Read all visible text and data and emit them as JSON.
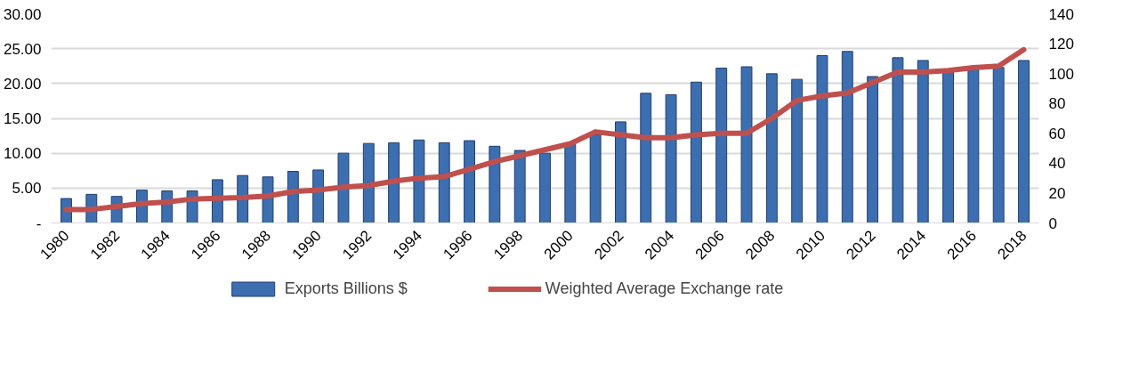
{
  "chart_data": {
    "type": "bar",
    "x": [
      1980,
      1981,
      1982,
      1983,
      1984,
      1985,
      1986,
      1987,
      1988,
      1989,
      1990,
      1991,
      1992,
      1993,
      1994,
      1995,
      1996,
      1997,
      1998,
      1999,
      2000,
      2001,
      2002,
      2003,
      2004,
      2005,
      2006,
      2007,
      2008,
      2009,
      2010,
      2011,
      2012,
      2013,
      2014,
      2015,
      2016,
      2017,
      2018
    ],
    "series": [
      {
        "name": "Exports Billions $",
        "color": "#3d6eb0",
        "values": [
          3.5,
          4.1,
          3.8,
          4.7,
          4.6,
          4.6,
          6.2,
          6.8,
          6.6,
          7.4,
          7.6,
          10.0,
          11.4,
          11.5,
          11.9,
          11.5,
          11.8,
          11.0,
          10.4,
          10.0,
          11.4,
          12.7,
          14.5,
          18.6,
          18.4,
          20.2,
          22.2,
          22.4,
          21.4,
          20.6,
          24.0,
          24.6,
          21.0,
          23.7,
          23.3,
          21.9,
          22.1,
          22.3,
          23.3
        ]
      },
      {
        "name": "Weighted Average Exchange rate",
        "type": "line",
        "axis": "y2",
        "color": "#c0504d",
        "values": [
          9,
          9,
          11,
          13,
          14,
          16,
          16.5,
          17,
          18,
          21,
          22,
          24,
          25,
          28,
          30,
          31,
          36,
          41,
          45,
          49,
          53,
          61,
          59,
          57,
          57,
          59,
          60,
          60,
          70,
          82,
          85,
          87,
          94,
          101,
          101,
          102,
          104,
          105,
          116
        ]
      }
    ],
    "xlim": [
      1979.4,
      2018.6
    ],
    "xticks": [
      1980,
      1982,
      1984,
      1986,
      1988,
      1990,
      1992,
      1994,
      1996,
      1998,
      2000,
      2002,
      2004,
      2006,
      2008,
      2010,
      2012,
      2014,
      2016,
      2018
    ],
    "ylim": [
      0,
      30
    ],
    "yticks": [
      {
        "value": 0,
        "label": "-"
      },
      {
        "value": 5,
        "label": "5.00"
      },
      {
        "value": 10,
        "label": "10.00"
      },
      {
        "value": 15,
        "label": "15.00"
      },
      {
        "value": 20,
        "label": "20.00"
      },
      {
        "value": 25,
        "label": "25.00"
      },
      {
        "value": 30,
        "label": "30.00"
      }
    ],
    "y2lim": [
      0,
      140
    ],
    "y2ticks": [
      0,
      20,
      40,
      60,
      80,
      100,
      120,
      140
    ],
    "grid": "y",
    "legend": "bottom",
    "line_style": "solid",
    "marker": "none"
  }
}
